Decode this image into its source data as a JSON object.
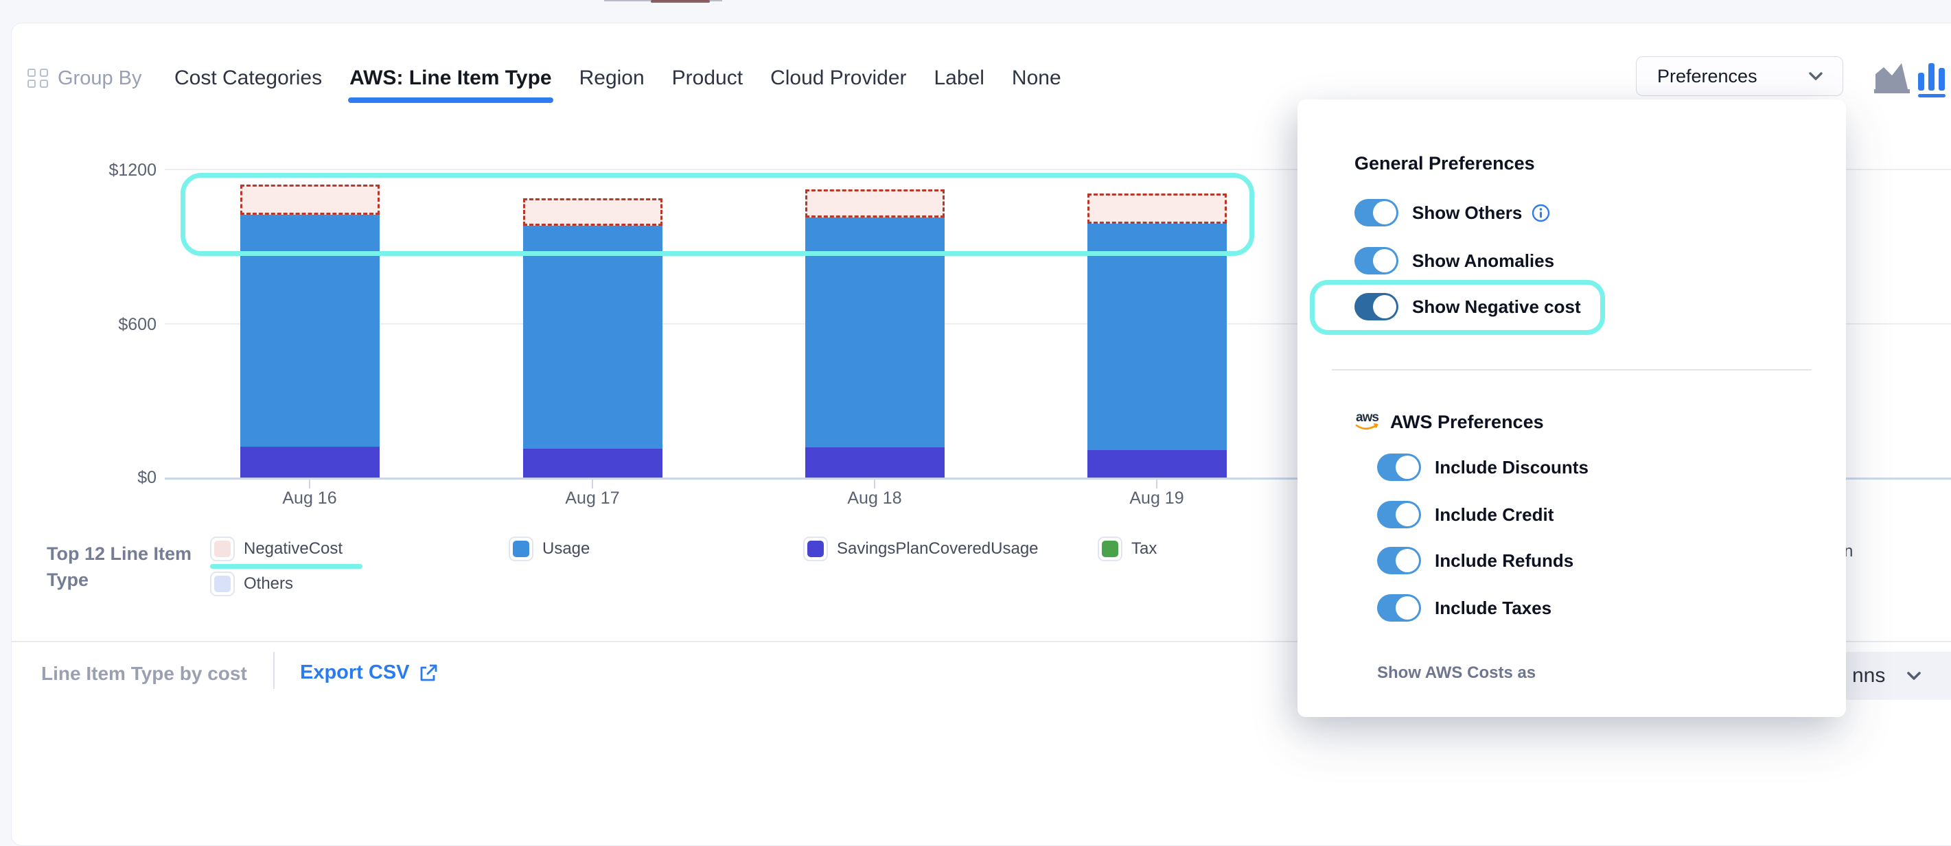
{
  "colors": {
    "accent": "#2e7cf0",
    "highlight": "#79f2ec",
    "toggle_on": "#4896dc",
    "toggle_dark": "#2d6aa1",
    "bar_usage": "#3e8ede",
    "bar_savings": "#4843d3",
    "negative_fill": "#fbece9",
    "negative_border": "#b6392c"
  },
  "header": {
    "group_by": {
      "label": "Group By",
      "icon": "grid-icon"
    },
    "tabs": [
      {
        "label": "Cost Categories",
        "active": false
      },
      {
        "label": "AWS: Line Item Type",
        "active": true
      },
      {
        "label": "Region",
        "active": false
      },
      {
        "label": "Product",
        "active": false
      },
      {
        "label": "Cloud Provider",
        "active": false
      },
      {
        "label": "Label",
        "active": false
      },
      {
        "label": "None",
        "active": false
      }
    ],
    "preferences_button": {
      "label": "Preferences",
      "icon": "chevron-down-icon"
    },
    "chart_type_icons": [
      {
        "name": "area-chart-icon",
        "selected": false
      },
      {
        "name": "bar-chart-icon",
        "selected": true
      }
    ]
  },
  "chart_data": {
    "type": "bar",
    "stacked": true,
    "title": "",
    "categories": [
      "Aug 16",
      "Aug 17",
      "Aug 18",
      "Aug 19"
    ],
    "series": [
      {
        "name": "SavingsPlanCoveredUsage",
        "color": "#4843d3",
        "values": [
          120,
          112,
          117,
          107
        ]
      },
      {
        "name": "Usage",
        "color": "#3e8ede",
        "values": [
          901,
          867,
          894,
          880
        ]
      },
      {
        "name": "NegativeCost",
        "color": "#fbece9",
        "border_color": "#b6392c",
        "border_style": "dashed",
        "values": [
          117,
          106,
          109,
          117
        ]
      }
    ],
    "ylim": [
      0,
      1200
    ],
    "ytick_labels": [
      "$1200",
      "$600",
      "$0"
    ],
    "grid": true,
    "legend_position": "bottom",
    "highlight_annotation": "cyan rounded rectangle around the dashed NegativeCost caps of all bars"
  },
  "legend": {
    "title": "Top 12 Line Item Type",
    "items": [
      {
        "label": "NegativeCost",
        "color": "#f6e3e1",
        "underlined": true
      },
      {
        "label": "Usage",
        "color": "#3e8ede"
      },
      {
        "label": "SavingsPlanCoveredUsage",
        "color": "#4843d3"
      },
      {
        "label": "Tax",
        "color": "#4aa34a"
      },
      {
        "label": "Others",
        "color": "#d9e1f8"
      },
      {
        "label": "n",
        "partially_hidden": true
      }
    ]
  },
  "preferences_panel": {
    "sections": [
      {
        "title": "General Preferences",
        "toggles": [
          {
            "label": "Show Others",
            "on": true,
            "info_icon": true
          },
          {
            "label": "Show Anomalies",
            "on": true
          },
          {
            "label": "Show Negative cost",
            "on": true,
            "variant": "dark",
            "highlighted": true
          }
        ]
      },
      {
        "title": "AWS Preferences",
        "icon": "aws-logo-icon",
        "toggles": [
          {
            "label": "Include Discounts",
            "on": true
          },
          {
            "label": "Include Credit",
            "on": true
          },
          {
            "label": "Include Refunds",
            "on": true
          },
          {
            "label": "Include Taxes",
            "on": true
          }
        ]
      }
    ],
    "footer_label": "Show AWS Costs as"
  },
  "footer": {
    "title": "Line Item Type by cost",
    "export_label": "Export CSV",
    "columns_button_visible_text": "nns"
  }
}
